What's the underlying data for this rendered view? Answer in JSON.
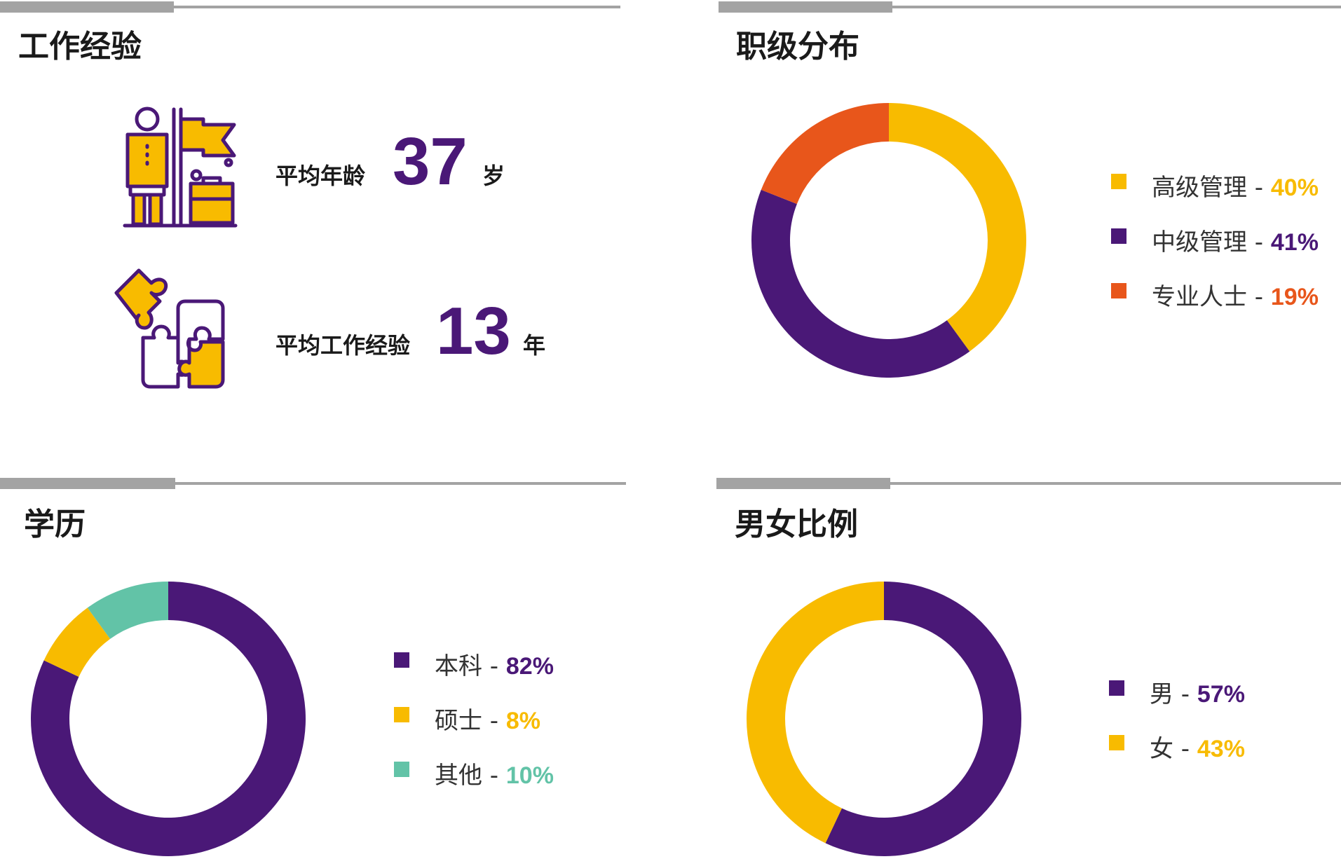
{
  "colors": {
    "purple": "#4a1877",
    "yellow": "#f8bb00",
    "orange": "#e8561b",
    "teal": "#62c3a7",
    "rule": "#a3a3a3"
  },
  "work_experience": {
    "title": "工作经验",
    "age": {
      "label": "平均年龄",
      "value": "37",
      "unit": "岁",
      "icon": "person-flag-briefcase-icon"
    },
    "experience": {
      "label": "平均工作经验",
      "value": "13",
      "unit": "年",
      "icon": "puzzle-icon"
    }
  },
  "chart_data": [
    {
      "type": "pie",
      "title": "职级分布",
      "donut": true,
      "legend_position": "right",
      "slices": [
        {
          "label": "高级管理",
          "value": 40,
          "display": "40%",
          "color": "#f8bb00"
        },
        {
          "label": "中级管理",
          "value": 41,
          "display": "41%",
          "color": "#4a1877"
        },
        {
          "label": "专业人士",
          "value": 19,
          "display": "19%",
          "color": "#e8561b"
        }
      ]
    },
    {
      "type": "pie",
      "title": "学历",
      "donut": true,
      "legend_position": "right",
      "slices": [
        {
          "label": "本科",
          "value": 82,
          "display": "82%",
          "color": "#4a1877"
        },
        {
          "label": "硕士",
          "value": 8,
          "display": "8%",
          "color": "#f8bb00"
        },
        {
          "label": "其他",
          "value": 10,
          "display": "10%",
          "color": "#62c3a7"
        }
      ]
    },
    {
      "type": "pie",
      "title": "男女比例",
      "donut": true,
      "legend_position": "right",
      "slices": [
        {
          "label": "男",
          "value": 57,
          "display": "57%",
          "color": "#4a1877"
        },
        {
          "label": "女",
          "value": 43,
          "display": "43%",
          "color": "#f8bb00"
        }
      ]
    }
  ]
}
